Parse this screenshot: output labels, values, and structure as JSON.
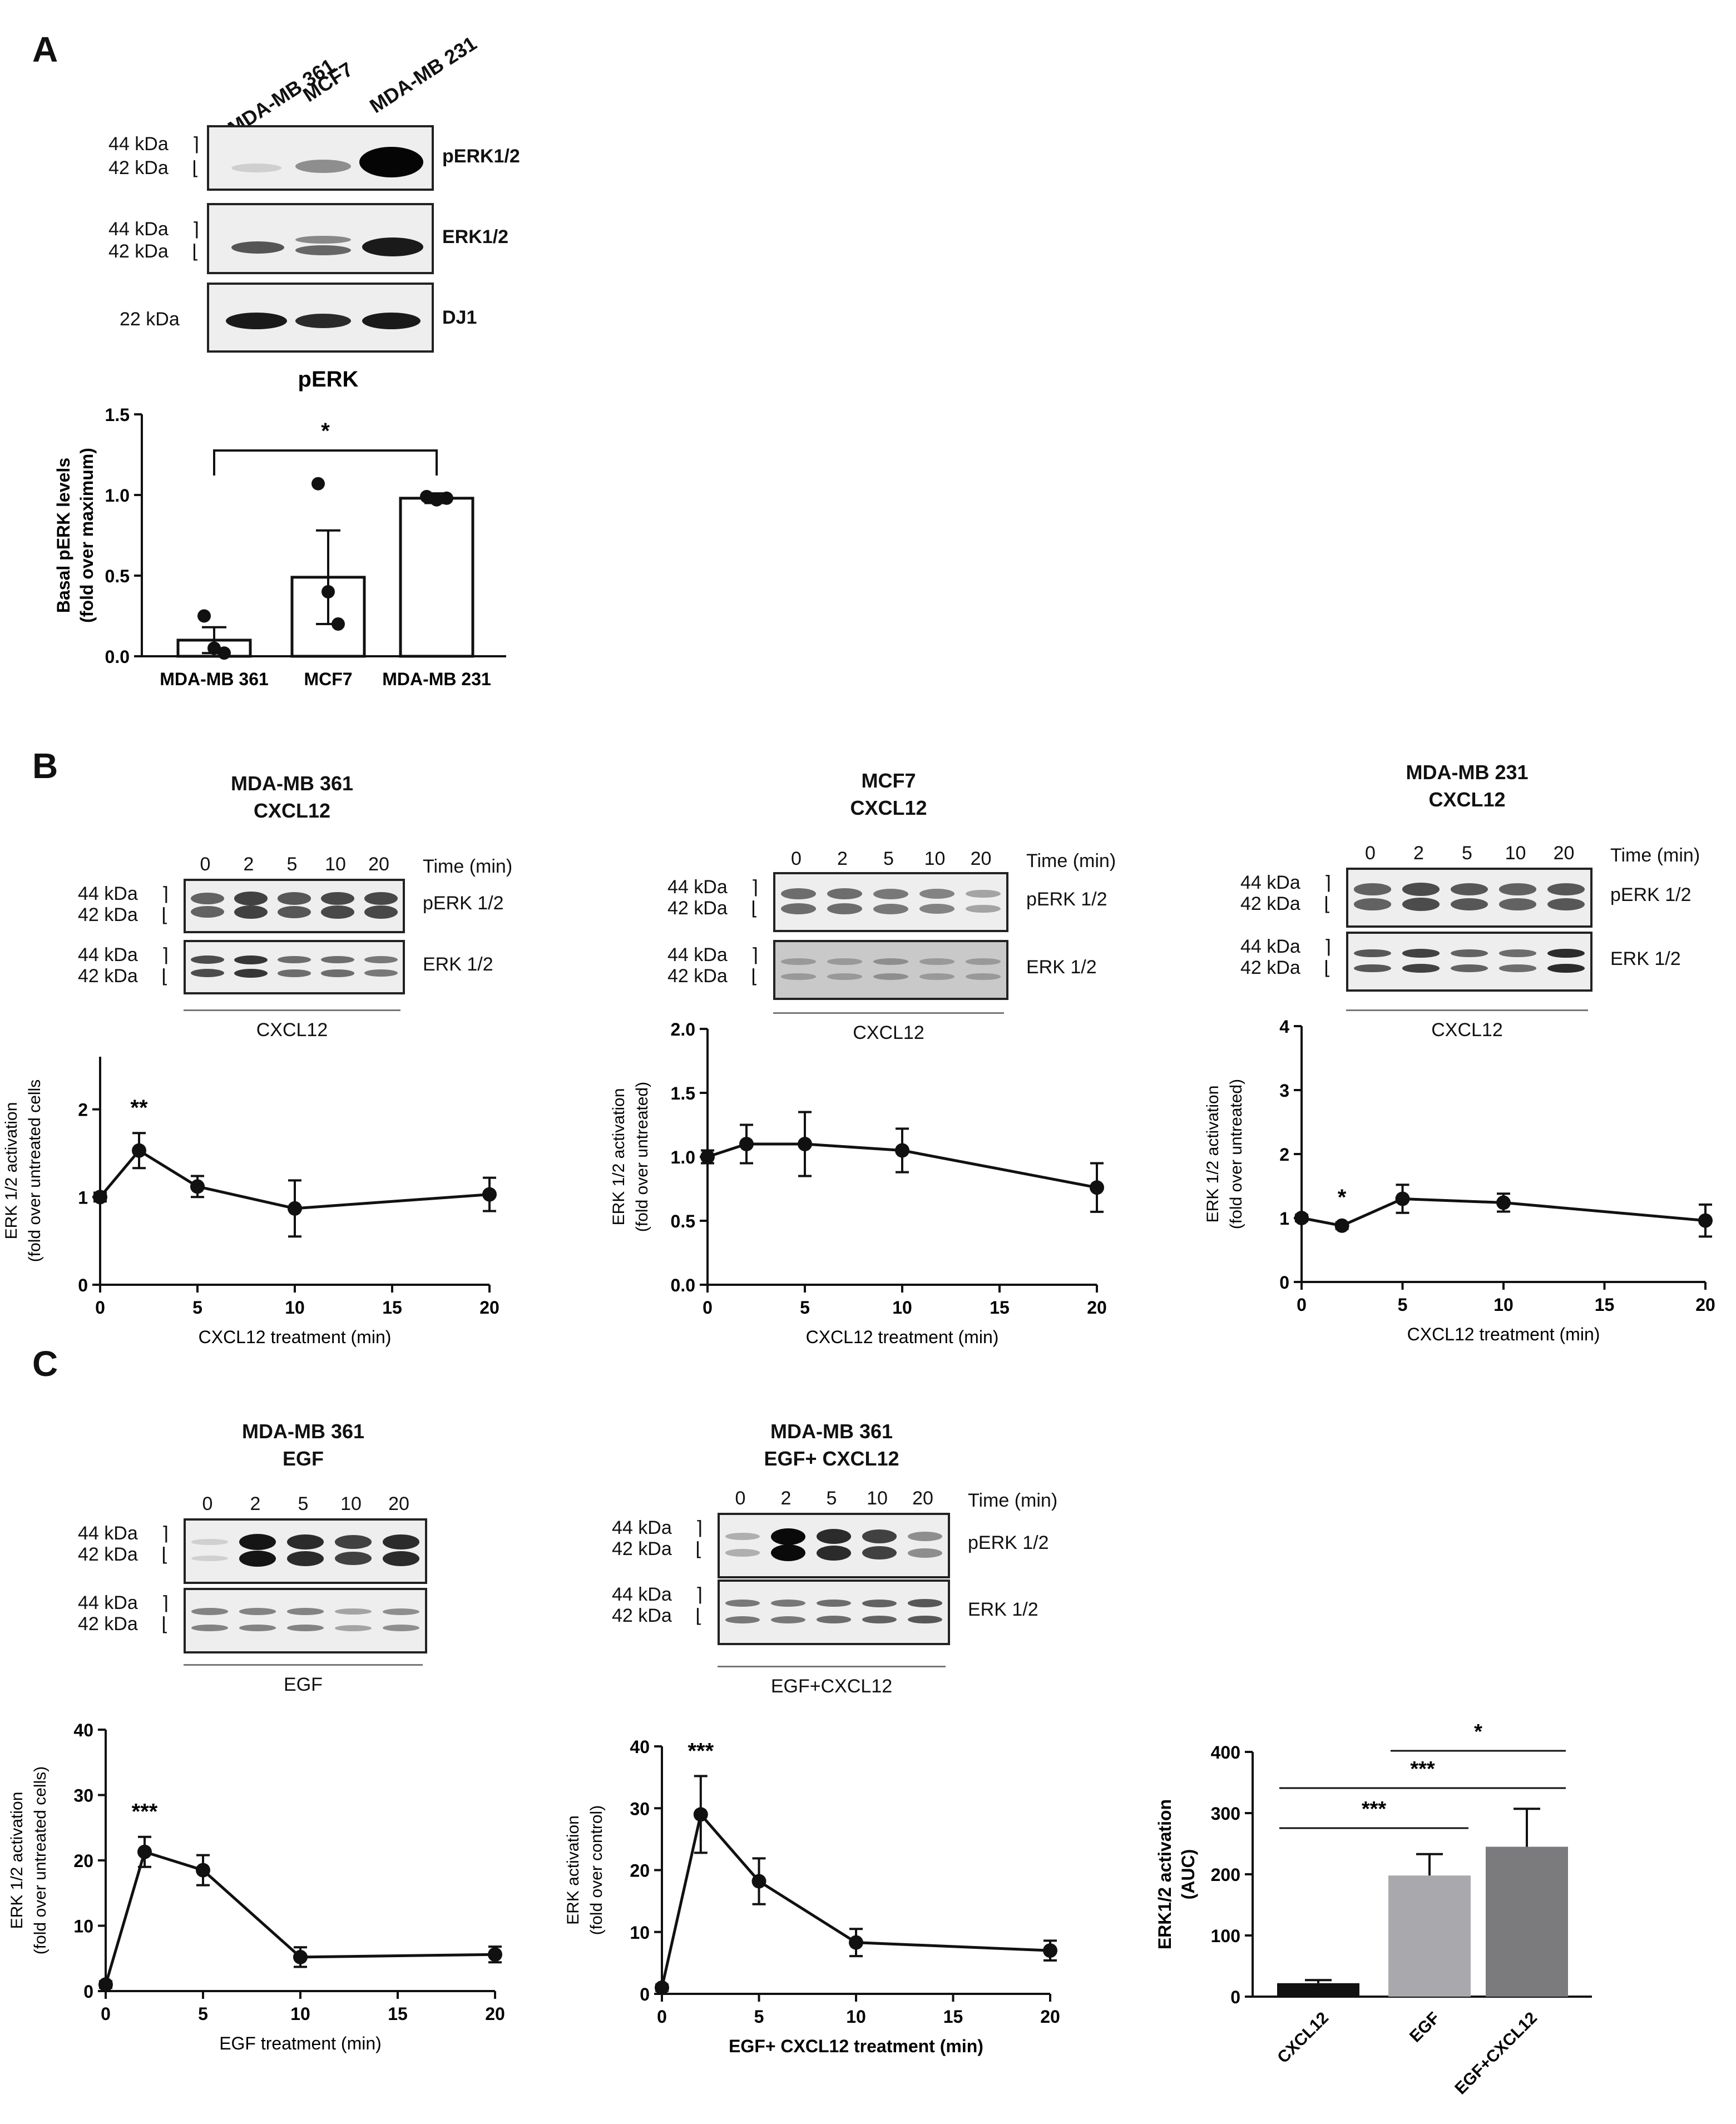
{
  "panel_labels": {
    "A": "A",
    "B": "B",
    "C": "C"
  },
  "panelA": {
    "lanes": [
      "MDA-MB 361",
      "MCF7",
      "MDA-MB 231"
    ],
    "rows": [
      {
        "kda": [
          "44 kDa",
          "42 kDa"
        ],
        "label": "pERK1/2"
      },
      {
        "kda": [
          "44 kDa",
          "42 kDa"
        ],
        "label": "ERK1/2"
      },
      {
        "kda": [
          "22 kDa"
        ],
        "label": "DJ1"
      }
    ]
  },
  "panelB": [
    {
      "title": [
        "MDA-MB 361",
        "CXCL12"
      ],
      "lanes": [
        "0",
        "2",
        "5",
        "10",
        "20"
      ],
      "time_label": "Time (min)",
      "rows": [
        {
          "kda": [
            "44 kDa",
            "42 kDa"
          ],
          "label": "pERK 1/2"
        },
        {
          "kda": [
            "44 kDa",
            "42 kDa"
          ],
          "label": "ERK 1/2"
        }
      ],
      "underline": "CXCL12"
    },
    {
      "title": [
        "MCF7",
        "CXCL12"
      ],
      "lanes": [
        "0",
        "2",
        "5",
        "10",
        "20"
      ],
      "time_label": "Time (min)",
      "rows": [
        {
          "kda": [
            "44 kDa",
            "42 kDa"
          ],
          "label": "pERK 1/2"
        },
        {
          "kda": [
            "44 kDa",
            "42 kDa"
          ],
          "label": "ERK 1/2"
        }
      ],
      "underline": "CXCL12"
    },
    {
      "title": [
        "MDA-MB 231",
        "CXCL12"
      ],
      "lanes": [
        "0",
        "2",
        "5",
        "10",
        "20"
      ],
      "time_label": "Time (min)",
      "rows": [
        {
          "kda": [
            "44 kDa",
            "42 kDa"
          ],
          "label": "pERK 1/2"
        },
        {
          "kda": [
            "44 kDa",
            "42 kDa"
          ],
          "label": "ERK 1/2"
        }
      ],
      "underline": "CXCL12"
    }
  ],
  "panelC": [
    {
      "title": [
        "MDA-MB 361",
        "EGF"
      ],
      "lanes": [
        "0",
        "2",
        "5",
        "10",
        "20"
      ],
      "time_label": "",
      "rows": [
        {
          "kda": [
            "44 kDa",
            "42 kDa"
          ],
          "label": ""
        },
        {
          "kda": [
            "44 kDa",
            "42 kDa"
          ],
          "label": ""
        }
      ],
      "underline": "EGF"
    },
    {
      "title": [
        "MDA-MB 361",
        "EGF+ CXCL12"
      ],
      "lanes": [
        "0",
        "2",
        "5",
        "10",
        "20"
      ],
      "time_label": "Time (min)",
      "rows": [
        {
          "kda": [
            "44 kDa",
            "42 kDa"
          ],
          "label": "pERK 1/2"
        },
        {
          "kda": [
            "44 kDa",
            "42 kDa"
          ],
          "label": "ERK 1/2"
        }
      ],
      "underline": "EGF+CXCL12"
    }
  ],
  "chart_data": [
    {
      "id": "A_bar",
      "type": "bar",
      "title": "pERK",
      "categories": [
        "MDA-MB 361",
        "MCF7",
        "MDA-MB 231"
      ],
      "values": [
        0.1,
        0.49,
        0.98
      ],
      "errors": [
        0.08,
        0.29,
        0.03
      ],
      "points": [
        [
          0.25,
          0.05,
          0.02
        ],
        [
          1.07,
          0.4,
          0.2
        ],
        [
          0.99,
          0.97,
          0.98
        ]
      ],
      "ylabel": [
        "Basal pERK levels",
        "(fold over maximum)"
      ],
      "ylim": [
        0,
        1.5
      ],
      "yticks": [
        "0.0",
        "0.5",
        "1.0",
        "1.5"
      ],
      "sig": {
        "from": 0,
        "to": 2,
        "label": "*"
      }
    },
    {
      "id": "B1",
      "type": "line",
      "x": [
        0,
        2,
        5,
        10,
        20
      ],
      "y": [
        1.0,
        1.53,
        1.12,
        0.87,
        1.03
      ],
      "err": [
        0.05,
        0.2,
        0.12,
        0.32,
        0.19
      ],
      "xticks": [
        "0",
        "5",
        "10",
        "15",
        "20"
      ],
      "yticks": [
        "0",
        "1",
        "2"
      ],
      "ylim": [
        0,
        2.6
      ],
      "xlabel": "CXCL12 treatment (min)",
      "ylabel": [
        "ERK 1/2 activation",
        "(fold over untreated cells"
      ],
      "annotation": "**",
      "ann_x": 2
    },
    {
      "id": "B2",
      "type": "line",
      "x": [
        0,
        2,
        5,
        10,
        20
      ],
      "y": [
        1.0,
        1.1,
        1.1,
        1.05,
        0.76
      ],
      "err": [
        0.05,
        0.15,
        0.25,
        0.17,
        0.19
      ],
      "xticks": [
        "0",
        "5",
        "10",
        "15",
        "20"
      ],
      "yticks": [
        "0.0",
        "0.5",
        "1.0",
        "1.5",
        "2.0"
      ],
      "ylim": [
        0,
        2.0
      ],
      "xlabel": "CXCL12 treatment (min)",
      "ylabel": [
        "ERK 1/2 activation",
        "(fold over untreated)"
      ]
    },
    {
      "id": "B3",
      "type": "line",
      "x": [
        0,
        2,
        5,
        10,
        20
      ],
      "y": [
        1.0,
        0.88,
        1.3,
        1.24,
        0.96
      ],
      "err": [
        0.05,
        0.05,
        0.22,
        0.14,
        0.25
      ],
      "xticks": [
        "0",
        "5",
        "10",
        "15",
        "20"
      ],
      "yticks": [
        "0",
        "1",
        "2",
        "3",
        "4"
      ],
      "ylim": [
        0,
        4
      ],
      "xlabel": "CXCL12 treatment (min)",
      "ylabel": [
        "ERK 1/2 activation",
        "(fold over untreated)"
      ],
      "annotation": "*",
      "ann_x": 2
    },
    {
      "id": "C1",
      "type": "line",
      "x": [
        0,
        2,
        5,
        10,
        20
      ],
      "y": [
        1,
        21.3,
        18.5,
        5.2,
        5.6
      ],
      "err": [
        0.5,
        2.3,
        2.3,
        1.5,
        1.2
      ],
      "xticks": [
        "0",
        "5",
        "10",
        "15",
        "20"
      ],
      "yticks": [
        "0",
        "10",
        "20",
        "30",
        "40"
      ],
      "ylim": [
        0,
        40
      ],
      "xlabel": "EGF treatment (min)",
      "ylabel": [
        "ERK 1/2 activation",
        "(fold over untreated cells)"
      ],
      "annotation": "***",
      "ann_x": 2
    },
    {
      "id": "C2",
      "type": "line",
      "x": [
        0,
        2,
        5,
        10,
        20
      ],
      "y": [
        1,
        29,
        18.2,
        8.3,
        7
      ],
      "err": [
        0.5,
        6.2,
        3.7,
        2.2,
        1.6
      ],
      "xticks": [
        "0",
        "5",
        "10",
        "15",
        "20"
      ],
      "yticks": [
        "0",
        "10",
        "20",
        "30",
        "40"
      ],
      "ylim": [
        0,
        40
      ],
      "xlabel": "EGF+ CXCL12 treatment (min)",
      "ylabel": [
        "ERK activation",
        "(fold over control)"
      ],
      "annotation": "***",
      "ann_x": 2
    },
    {
      "id": "C3",
      "type": "bar",
      "categories": [
        "CXCL12",
        "EGF",
        "EGF+CXCL12"
      ],
      "values": [
        22,
        198,
        245
      ],
      "errors": [
        5,
        35,
        62
      ],
      "colors": [
        "#111111",
        "#a9a9ad",
        "#7b7b7e"
      ],
      "ylim": [
        0,
        400
      ],
      "yticks": [
        "0",
        "100",
        "200",
        "300",
        "400"
      ],
      "ylabel": [
        "ERK1/2 activation",
        "(AUC)"
      ],
      "sig": [
        {
          "from": 0,
          "to": 1,
          "label": "***"
        },
        {
          "from": 0,
          "to": 2,
          "label": "***"
        },
        {
          "from": 1,
          "to": 2,
          "label": "*"
        }
      ]
    }
  ]
}
